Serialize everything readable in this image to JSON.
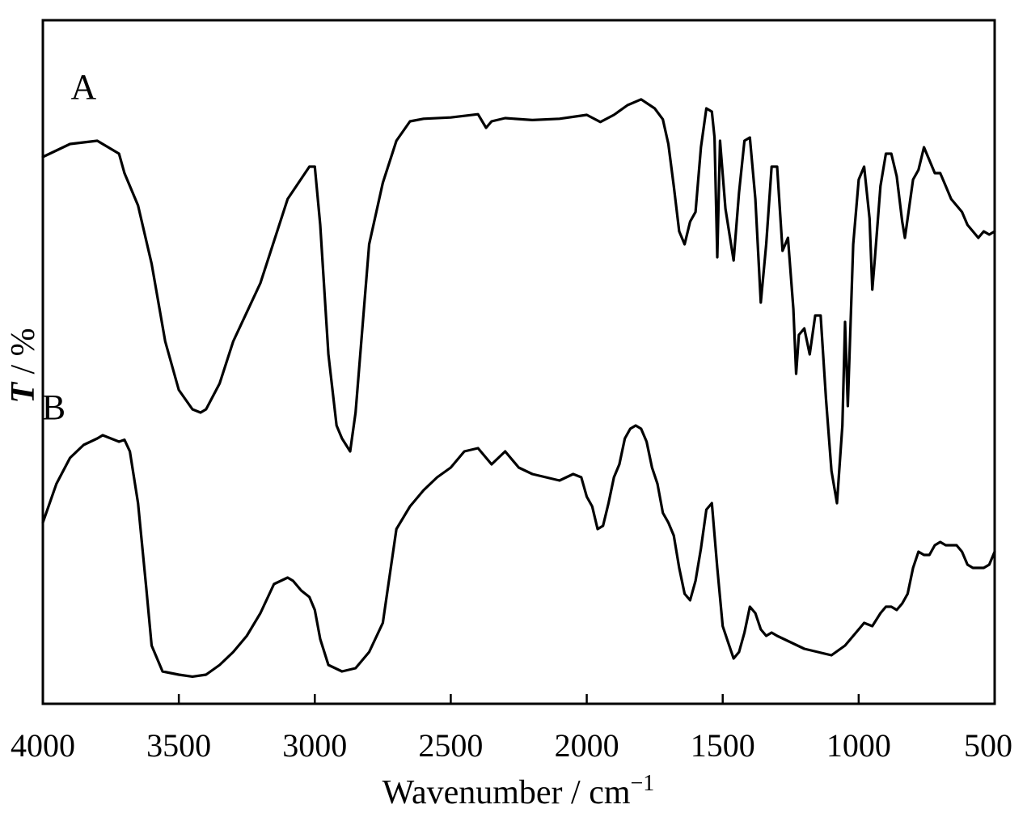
{
  "chart_data": {
    "type": "line",
    "xlabel": "Wavenumber / cm",
    "xlabel_superscript": "−1",
    "ylabel_italic": "T",
    "ylabel_unit": " / %",
    "x_reversed": true,
    "xlim": [
      4000,
      500
    ],
    "ylim": [
      0,
      100
    ],
    "grid": false,
    "y_ticks_shown": false,
    "x_ticks": [
      4000,
      3500,
      3000,
      2500,
      2000,
      1500,
      1000,
      500
    ],
    "x_tick_labels": [
      "4000",
      "3500",
      "3000",
      "2500",
      "2000",
      "1500",
      "1000",
      "500"
    ],
    "series": [
      {
        "name": "A",
        "label_position": [
          3850,
          92.5
        ],
        "x": [
          4000,
          3900,
          3800,
          3720,
          3700,
          3650,
          3600,
          3550,
          3500,
          3450,
          3420,
          3400,
          3350,
          3300,
          3200,
          3100,
          3020,
          3000,
          2980,
          2950,
          2920,
          2900,
          2870,
          2850,
          2800,
          2750,
          2700,
          2650,
          2600,
          2500,
          2400,
          2370,
          2350,
          2300,
          2200,
          2100,
          2000,
          1950,
          1900,
          1850,
          1800,
          1750,
          1720,
          1700,
          1680,
          1660,
          1640,
          1620,
          1600,
          1580,
          1560,
          1540,
          1530,
          1520,
          1510,
          1490,
          1460,
          1440,
          1420,
          1400,
          1380,
          1360,
          1340,
          1320,
          1300,
          1280,
          1260,
          1240,
          1230,
          1220,
          1200,
          1180,
          1160,
          1140,
          1120,
          1100,
          1080,
          1060,
          1050,
          1040,
          1020,
          1000,
          980,
          960,
          950,
          940,
          920,
          900,
          880,
          860,
          840,
          830,
          820,
          800,
          780,
          760,
          740,
          720,
          700,
          680,
          660,
          640,
          620,
          600,
          580,
          560,
          540,
          520,
          500
        ],
        "y": [
          83.5,
          85.5,
          86,
          84,
          81,
          76,
          67,
          55,
          47.5,
          44.5,
          44,
          44.5,
          48.5,
          55,
          64,
          77,
          82,
          82,
          73,
          53,
          42,
          40,
          38,
          44,
          70,
          79.5,
          86,
          89,
          89.4,
          89.6,
          90.1,
          88,
          89,
          89.5,
          89.2,
          89.4,
          90,
          88.9,
          90,
          91.5,
          92.4,
          91,
          89.3,
          85.5,
          79,
          72,
          70,
          73.5,
          75,
          85,
          91,
          90.5,
          86.5,
          68,
          86,
          75.5,
          67.5,
          78,
          86,
          86.5,
          77,
          61,
          70,
          82,
          82,
          69,
          71,
          60,
          50,
          56,
          57,
          53,
          59,
          59,
          46,
          35,
          30,
          42,
          58,
          45,
          70,
          80,
          82,
          74,
          63,
          68,
          79,
          84,
          84,
          80.5,
          73.5,
          71,
          74,
          80,
          81.5,
          85,
          83,
          81,
          81,
          79,
          77,
          76,
          75,
          73,
          72,
          71,
          72,
          71.5,
          72
        ]
      },
      {
        "name": "B",
        "label_position": [
          3960,
          43
        ],
        "x": [
          4000,
          3950,
          3900,
          3850,
          3800,
          3780,
          3750,
          3720,
          3700,
          3680,
          3650,
          3620,
          3600,
          3560,
          3500,
          3450,
          3400,
          3350,
          3300,
          3250,
          3200,
          3150,
          3100,
          3080,
          3050,
          3020,
          3000,
          2980,
          2950,
          2900,
          2850,
          2800,
          2750,
          2700,
          2650,
          2600,
          2550,
          2500,
          2450,
          2400,
          2350,
          2300,
          2250,
          2200,
          2150,
          2100,
          2050,
          2020,
          2000,
          1980,
          1960,
          1940,
          1920,
          1900,
          1880,
          1860,
          1840,
          1820,
          1800,
          1780,
          1760,
          1740,
          1720,
          1700,
          1680,
          1660,
          1640,
          1620,
          1600,
          1580,
          1560,
          1540,
          1520,
          1500,
          1480,
          1460,
          1440,
          1420,
          1400,
          1380,
          1360,
          1340,
          1320,
          1300,
          1250,
          1200,
          1150,
          1100,
          1050,
          1000,
          980,
          950,
          920,
          900,
          880,
          860,
          840,
          820,
          800,
          780,
          760,
          740,
          720,
          700,
          680,
          660,
          640,
          620,
          600,
          580,
          560,
          540,
          520,
          500
        ],
        "y": [
          27,
          33,
          37,
          39,
          40,
          40.5,
          40,
          39.5,
          39.8,
          38,
          30,
          17,
          8,
          4,
          3.5,
          3.2,
          3.5,
          5,
          7,
          9.5,
          13,
          17.5,
          18.5,
          18,
          16.5,
          15.5,
          13.5,
          9,
          5,
          4,
          4.5,
          7,
          11.5,
          26,
          29.5,
          32,
          34,
          35.5,
          38,
          38.5,
          36,
          38,
          35.5,
          34.5,
          34,
          33.5,
          34.5,
          34,
          31,
          29.5,
          26,
          26.5,
          30,
          34,
          36,
          40,
          41.5,
          42,
          41.5,
          39.5,
          35.5,
          33,
          28.5,
          27,
          25,
          20,
          16,
          15,
          18,
          23,
          29,
          30,
          20,
          11,
          8.5,
          6,
          7,
          10,
          14,
          13,
          10.5,
          9.5,
          10,
          9.5,
          8.5,
          7.5,
          7,
          6.5,
          8,
          10.5,
          11.5,
          11,
          13,
          14,
          14,
          13.5,
          14.5,
          16,
          20,
          22.5,
          22,
          22,
          23.5,
          24,
          23.5,
          23.5,
          23.5,
          22.5,
          20.5,
          20,
          20,
          20,
          20.5,
          22.5
        ]
      }
    ]
  }
}
